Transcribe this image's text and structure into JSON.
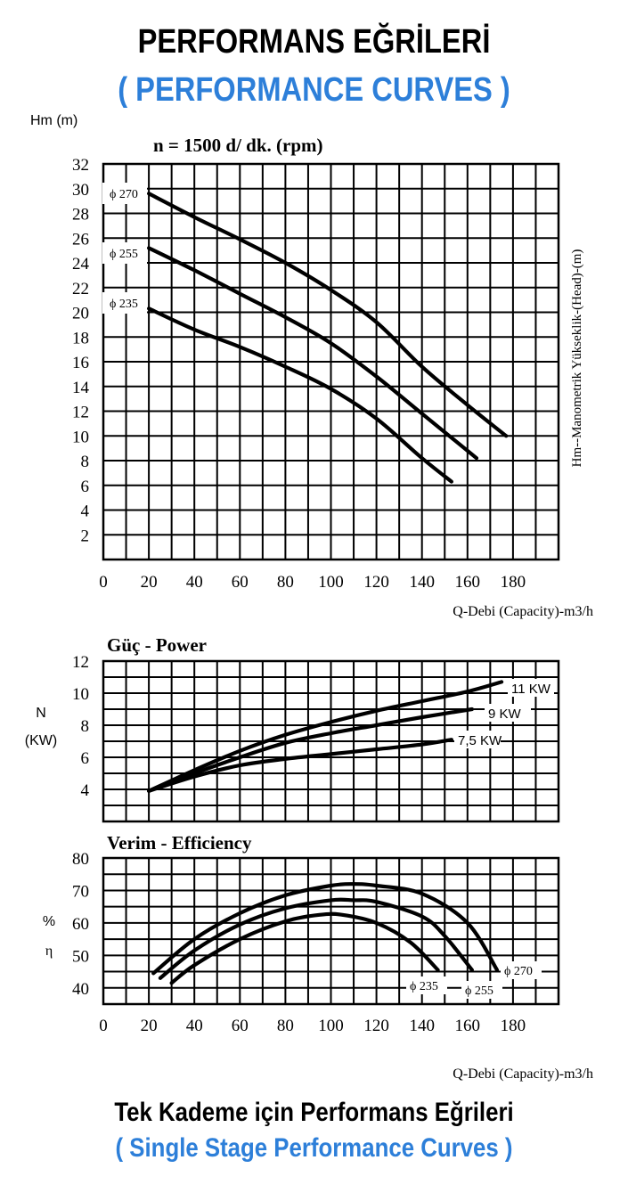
{
  "header": {
    "title": "PERFORMANS EĞRİLERİ",
    "subtitle": "( PERFORMANCE CURVES )"
  },
  "footer": {
    "title": "Tek Kademe için Performans Eğrileri",
    "subtitle": "( Single Stage Performance Curves )"
  },
  "colors": {
    "accent": "#2d7fd9",
    "ink": "#000000"
  },
  "chart_data": [
    {
      "type": "line",
      "id": "head",
      "title": "n = 1500 d/ dk.  (rpm)",
      "ylabel": "Hm (m)",
      "ylabel_right": "Hm--Manometrik Yükseklik-(Head)-(m)",
      "xlabel": "Q-Debi (Capacity)-m3/h",
      "xlim": [
        0,
        200
      ],
      "ylim": [
        0,
        32
      ],
      "xticks": [
        0,
        20,
        40,
        60,
        80,
        100,
        120,
        140,
        160,
        180
      ],
      "yticks": [
        2,
        4,
        6,
        8,
        10,
        12,
        14,
        16,
        18,
        20,
        22,
        24,
        26,
        28,
        30,
        32
      ],
      "grid": true,
      "series": [
        {
          "name": "ϕ 270",
          "x": [
            20,
            40,
            60,
            80,
            100,
            120,
            140,
            160,
            177
          ],
          "y": [
            29.6,
            27.7,
            25.9,
            24.0,
            21.8,
            19.2,
            15.6,
            12.5,
            10.0
          ]
        },
        {
          "name": "ϕ 255",
          "x": [
            20,
            40,
            60,
            80,
            100,
            120,
            140,
            164
          ],
          "y": [
            25.2,
            23.4,
            21.5,
            19.6,
            17.5,
            14.8,
            11.8,
            8.2
          ]
        },
        {
          "name": "ϕ 235",
          "x": [
            20,
            40,
            60,
            80,
            100,
            120,
            140,
            153
          ],
          "y": [
            20.3,
            18.6,
            17.2,
            15.6,
            13.8,
            11.4,
            8.2,
            6.3
          ]
        }
      ]
    },
    {
      "type": "line",
      "id": "power",
      "title": "Güç - Power",
      "ylabel": "N\n(KW)",
      "xlim": [
        0,
        200
      ],
      "ylim": [
        2,
        12
      ],
      "yticks": [
        4,
        6,
        8,
        10,
        12
      ],
      "grid": true,
      "series": [
        {
          "name": "11 KW",
          "x": [
            20,
            40,
            60,
            80,
            100,
            120,
            140,
            160,
            175
          ],
          "y": [
            3.9,
            5.2,
            6.4,
            7.4,
            8.2,
            8.9,
            9.5,
            10.1,
            10.7
          ]
        },
        {
          "name": "9 KW",
          "x": [
            20,
            40,
            60,
            80,
            100,
            120,
            140,
            162
          ],
          "y": [
            3.9,
            5.0,
            6.0,
            6.9,
            7.5,
            8.0,
            8.5,
            9.0
          ]
        },
        {
          "name": "7,5 KW",
          "x": [
            20,
            40,
            60,
            80,
            100,
            120,
            140,
            153
          ],
          "y": [
            3.9,
            4.8,
            5.5,
            5.9,
            6.2,
            6.5,
            6.8,
            7.1
          ]
        }
      ]
    },
    {
      "type": "line",
      "id": "efficiency",
      "title": "Verim - Efficiency",
      "ylabel": "%\nη",
      "xlabel": "Q-Debi (Capacity)-m3/h",
      "xlim": [
        0,
        200
      ],
      "ylim": [
        35,
        80
      ],
      "xticks": [
        0,
        20,
        40,
        60,
        80,
        100,
        120,
        140,
        160,
        180
      ],
      "yticks": [
        40,
        50,
        60,
        70,
        80
      ],
      "grid": true,
      "series": [
        {
          "name": "ϕ 270",
          "x": [
            22,
            40,
            60,
            80,
            100,
            110,
            120,
            140,
            160,
            173
          ],
          "y": [
            44.5,
            55,
            63,
            68.5,
            71.5,
            72,
            71.5,
            69,
            60,
            45.5
          ]
        },
        {
          "name": "ϕ 255",
          "x": [
            25,
            40,
            60,
            80,
            100,
            110,
            120,
            140,
            150,
            162
          ],
          "y": [
            43,
            51.5,
            59.5,
            64.5,
            67,
            67,
            66.5,
            62,
            56,
            45.5
          ]
        },
        {
          "name": "ϕ 235",
          "x": [
            30,
            40,
            60,
            80,
            95,
            105,
            120,
            135,
            147
          ],
          "y": [
            41.5,
            47,
            55,
            60.5,
            62.5,
            62.5,
            60,
            54,
            45.5
          ]
        }
      ]
    }
  ]
}
